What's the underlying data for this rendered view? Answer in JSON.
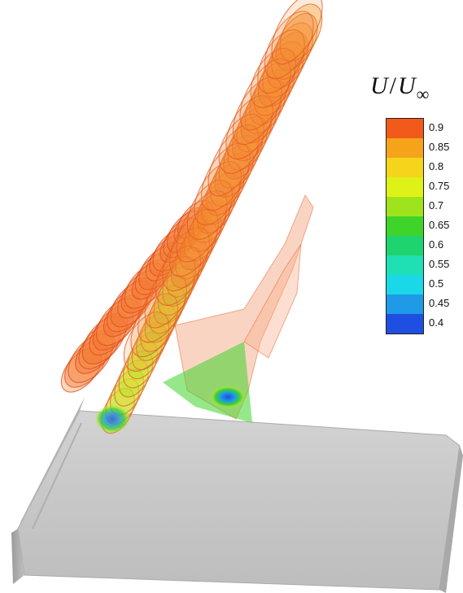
{
  "legend": {
    "title_main": "U",
    "title_sep": "/",
    "title_sub": "U",
    "title_inf": "∞",
    "levels": [
      {
        "label": "0.9",
        "color": "#f25a1c"
      },
      {
        "label": "0.85",
        "color": "#f7a31a"
      },
      {
        "label": "0.8",
        "color": "#f5d51c"
      },
      {
        "label": "0.75",
        "color": "#dff218"
      },
      {
        "label": "0.7",
        "color": "#9ee31b"
      },
      {
        "label": "0.65",
        "color": "#3fd42a"
      },
      {
        "label": "0.6",
        "color": "#1ed46e"
      },
      {
        "label": "0.55",
        "color": "#1ee0b4"
      },
      {
        "label": "0.5",
        "color": "#1ad8e8"
      },
      {
        "label": "0.45",
        "color": "#1f9ae6"
      },
      {
        "label": "0.4",
        "color": "#1f4fe0"
      }
    ]
  },
  "scene": {
    "vortex_color": "#f26a2a",
    "wing_color": "#c9c9c9",
    "core_color": "#1f5fd8"
  }
}
